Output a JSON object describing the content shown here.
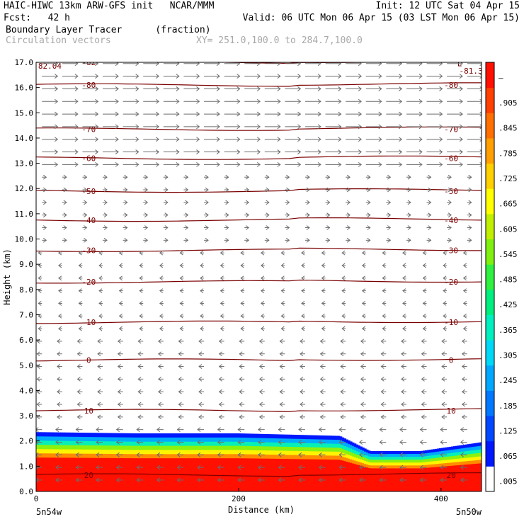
{
  "header": {
    "model": "HAIC-HIWC 13km ARW-GFS init   NCAR/MMM",
    "init": "Init: 12 UTC Sat 04 Apr 15",
    "fcst": "Fcst:   42 h",
    "valid": "Valid: 06 UTC Mon 06 Apr 15 (03 LST Mon 06 Apr 15)",
    "field": "Boundary Layer Tracer      (fraction)",
    "overlay": "Circulation vectors",
    "xsect": "XY= 251.0,100.0 to 284.7,100.0"
  },
  "chart_data": {
    "type": "heatmap",
    "title": "Boundary Layer Tracer (fraction)",
    "xlabel": "Distance (km)",
    "ylabel": "Height (km)",
    "xlim": [
      0,
      440
    ],
    "ylim": [
      0,
      17
    ],
    "x_ticks": [
      "0",
      "200",
      "400"
    ],
    "x_tick_values": [
      0,
      200,
      400
    ],
    "y_ticks": [
      "0.0",
      "1.0",
      "2.0",
      "3.0",
      "4.0",
      "5.0",
      "6.0",
      "7.0",
      "8.0",
      "9.0",
      "10.0",
      "11.0",
      "12.0",
      "13.0",
      "14.0",
      "15.0",
      "16.0",
      "17.0"
    ],
    "endpoint_left": "5n54w",
    "endpoint_right": "5n50w",
    "colorbar": {
      "labels": [
        ".005",
        ".065",
        ".125",
        ".185",
        ".245",
        ".305",
        ".365",
        ".425",
        ".485",
        ".545",
        ".605",
        ".665",
        ".725",
        ".785",
        ".845",
        ".905",
        "–"
      ],
      "colors": [
        "#ffffff",
        "#0018ff",
        "#0048ff",
        "#0078ff",
        "#00a8ff",
        "#00d8f8",
        "#00f0c0",
        "#00f080",
        "#30f040",
        "#80f010",
        "#c0f000",
        "#ffff00",
        "#ffd000",
        "#ffa000",
        "#ff7000",
        "#ff4000",
        "#ff1000"
      ]
    },
    "boundary_layer_top_km": [
      {
        "x": 0,
        "top": 2.35
      },
      {
        "x": 100,
        "top": 2.3
      },
      {
        "x": 200,
        "top": 2.3
      },
      {
        "x": 300,
        "top": 2.2
      },
      {
        "x": 330,
        "top": 1.6
      },
      {
        "x": 380,
        "top": 1.6
      },
      {
        "x": 440,
        "top": 1.95
      }
    ],
    "temperature_contours_C": [
      {
        "label": "-82",
        "y_km": 17.0
      },
      {
        "label": "-80",
        "y_km": 16.1
      },
      {
        "label": "-70",
        "y_km": 14.35
      },
      {
        "label": "-60",
        "y_km": 13.2
      },
      {
        "label": "-50",
        "y_km": 11.9
      },
      {
        "label": "-40",
        "y_km": 10.75
      },
      {
        "label": "-30",
        "y_km": 9.55
      },
      {
        "label": "-20",
        "y_km": 8.3
      },
      {
        "label": "-10",
        "y_km": 6.7
      },
      {
        "label": "0",
        "y_km": 5.2
      },
      {
        "label": "10",
        "y_km": 3.2
      },
      {
        "label": "20",
        "y_km": 0.65
      }
    ],
    "annotations": [
      "82.04",
      "L",
      "-81.3"
    ]
  }
}
